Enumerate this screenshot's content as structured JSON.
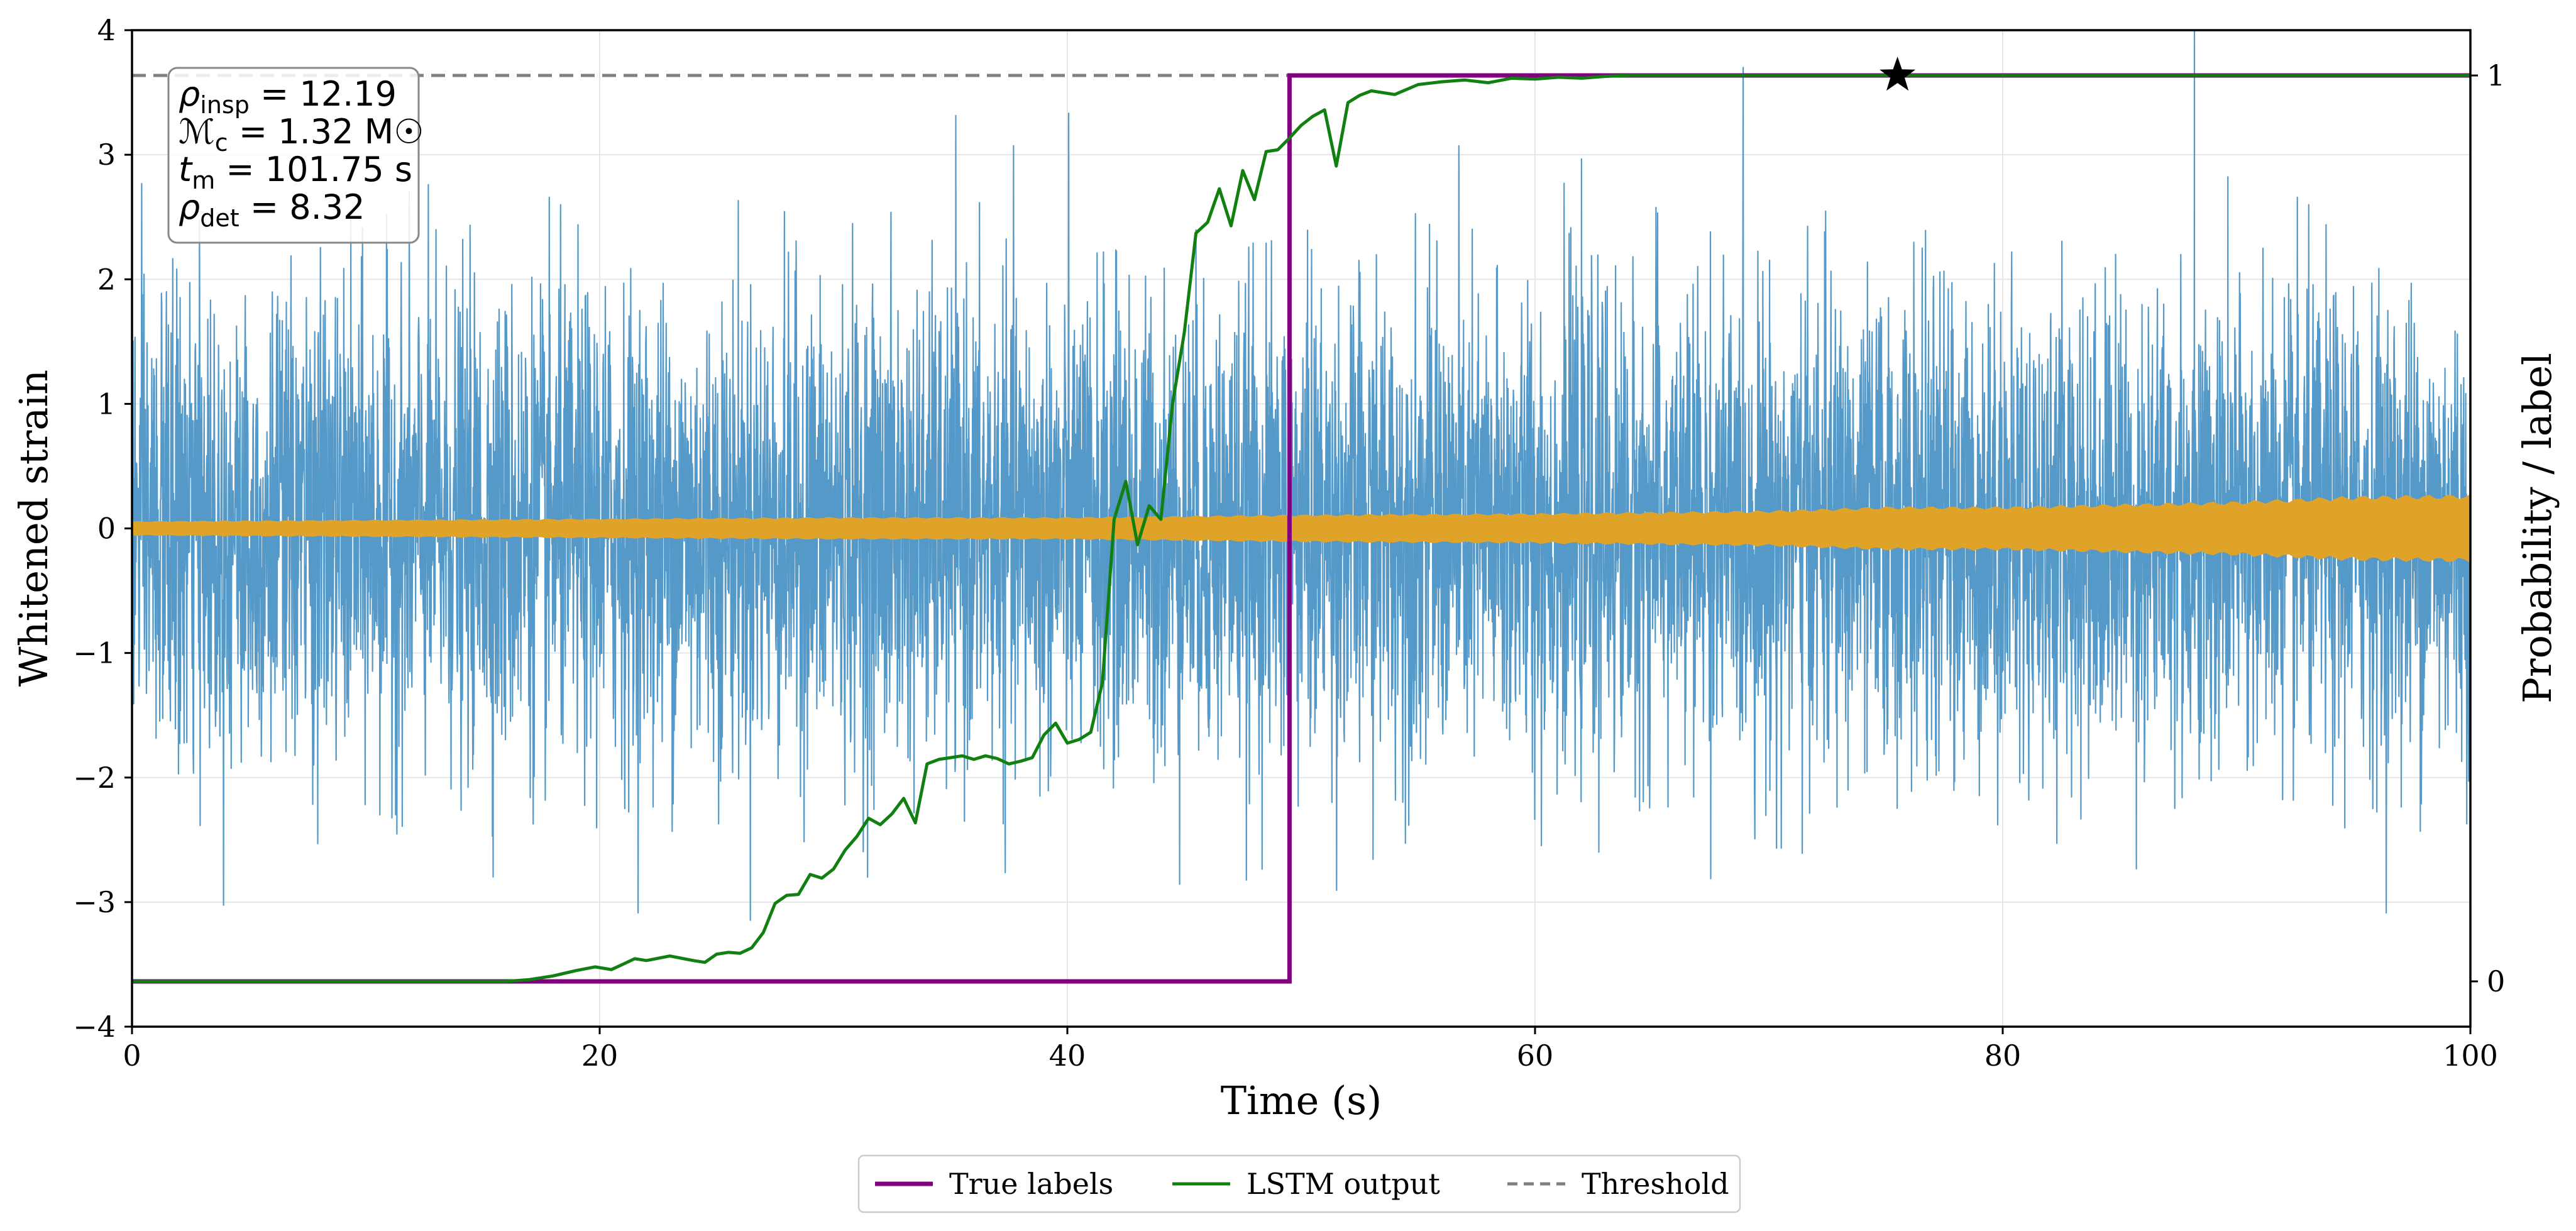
{
  "chart_data": {
    "type": "line",
    "xlabel": "Time (s)",
    "ylabel_left": "Whitened strain",
    "ylabel_right": "Probability / label",
    "xlim": [
      0,
      100
    ],
    "ylim_left": [
      -4,
      4
    ],
    "ylim_right": [
      -0.05,
      1.05
    ],
    "x_ticks": [
      0,
      20,
      40,
      60,
      80,
      100
    ],
    "x_tick_labels": [
      "0",
      "20",
      "40",
      "60",
      "80",
      "100"
    ],
    "y_left_ticks": [
      -4,
      -3,
      -2,
      -1,
      0,
      1,
      2,
      3,
      4
    ],
    "y_left_tick_labels": [
      "−4",
      "−3",
      "−2",
      "−1",
      "0",
      "1",
      "2",
      "3",
      "4"
    ],
    "y_right_ticks": [
      0,
      1
    ],
    "y_right_tick_labels": [
      "0",
      "1"
    ],
    "grid": true,
    "legend_position": "bottom-center",
    "colors": {
      "strain": "#5599c8",
      "signal": "#e0a32a",
      "true_labels": "#800080",
      "lstm": "#118011",
      "threshold": "#808080",
      "marker": "#000000"
    },
    "series": [
      {
        "name": "Whitened strain",
        "axis": "left",
        "kind": "noise",
        "x_range": [
          0,
          100
        ],
        "typical_amplitude": 1.5,
        "peak_max": 4.0,
        "peak_min": -3.4,
        "in_legend": false
      },
      {
        "name": "Injected signal",
        "axis": "left",
        "kind": "envelope",
        "x": [
          0,
          10,
          20,
          30,
          40,
          50,
          60,
          70,
          75,
          80,
          85,
          90,
          95,
          100
        ],
        "amplitude": [
          0.05,
          0.06,
          0.07,
          0.08,
          0.08,
          0.1,
          0.11,
          0.13,
          0.16,
          0.16,
          0.18,
          0.2,
          0.24,
          0.25
        ],
        "in_legend": false
      },
      {
        "name": "True labels",
        "axis": "right",
        "kind": "step",
        "x": [
          0,
          49.5,
          49.5,
          100
        ],
        "y": [
          0,
          0,
          1,
          1
        ],
        "in_legend": true
      },
      {
        "name": "LSTM output",
        "axis": "right",
        "kind": "line",
        "x": [
          0,
          16,
          17,
          18,
          19,
          19.8,
          20.5,
          21,
          21.5,
          22,
          23,
          24,
          24.5,
          25,
          25.5,
          26,
          26.5,
          27,
          27.5,
          28,
          28.5,
          29,
          29.5,
          30,
          30.5,
          31,
          31.5,
          32,
          32.5,
          33,
          33.5,
          34,
          34.5,
          35,
          35.5,
          36,
          36.5,
          37,
          37.5,
          38,
          38.5,
          39,
          39.5,
          40,
          40.5,
          41,
          41.5,
          42,
          42.5,
          43,
          43.5,
          44,
          44.5,
          45,
          45.5,
          46,
          46.5,
          47,
          47.5,
          48,
          48.5,
          49,
          49.5,
          50,
          50.5,
          51,
          51.5,
          52,
          52.5,
          53,
          54,
          55,
          56,
          57,
          58,
          59,
          60,
          61,
          62,
          63,
          64,
          100
        ],
        "y": [
          0,
          0,
          0.002,
          0.006,
          0.012,
          0.016,
          0.013,
          0.019,
          0.025,
          0.023,
          0.028,
          0.023,
          0.021,
          0.03,
          0.032,
          0.031,
          0.037,
          0.054,
          0.086,
          0.095,
          0.096,
          0.118,
          0.114,
          0.124,
          0.145,
          0.16,
          0.18,
          0.173,
          0.185,
          0.202,
          0.175,
          0.24,
          0.245,
          0.247,
          0.249,
          0.245,
          0.249,
          0.246,
          0.24,
          0.243,
          0.247,
          0.272,
          0.285,
          0.263,
          0.267,
          0.275,
          0.33,
          0.51,
          0.552,
          0.482,
          0.525,
          0.51,
          0.638,
          0.716,
          0.826,
          0.838,
          0.875,
          0.834,
          0.895,
          0.863,
          0.916,
          0.918,
          0.931,
          0.945,
          0.955,
          0.962,
          0.9,
          0.97,
          0.978,
          0.983,
          0.979,
          0.99,
          0.993,
          0.995,
          0.992,
          0.997,
          0.996,
          0.998,
          0.997,
          0.999,
          1.0,
          1.0
        ],
        "in_legend": true
      },
      {
        "name": "Threshold",
        "axis": "right",
        "kind": "hline",
        "y": 1.0,
        "style": "dashed",
        "in_legend": true
      }
    ],
    "detection_marker": {
      "x": 75.5,
      "y": 1.0,
      "symbol": "star"
    },
    "annotation": {
      "lines": [
        {
          "symbol": "ρ",
          "sub": "insp",
          "text": " = 12.19"
        },
        {
          "symbol": "ℳ",
          "sub": "c",
          "text": " = 1.32 M☉"
        },
        {
          "symbol": "t",
          "sub": "m",
          "text": " = 101.75 s"
        },
        {
          "symbol": "ρ",
          "sub": "det",
          "text": " = 8.32"
        }
      ],
      "position": "top-left"
    },
    "legend": [
      "True labels",
      "LSTM output",
      "Threshold"
    ]
  }
}
